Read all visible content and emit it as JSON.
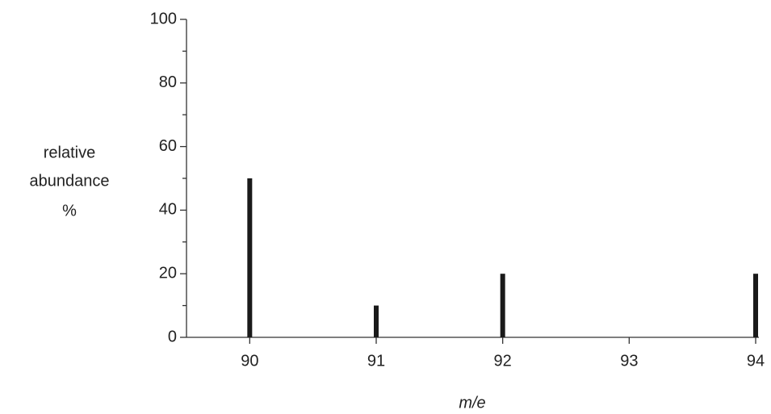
{
  "chart_data": {
    "type": "bar",
    "x": [
      90,
      91,
      92,
      94
    ],
    "values": [
      50,
      10,
      20,
      20
    ],
    "color": "#1a1a1a",
    "xlim": [
      89.5,
      94
    ],
    "xticks": [
      90,
      91,
      92,
      93,
      94
    ],
    "ylim": [
      0,
      100
    ],
    "yticks": [
      0,
      20,
      40,
      60,
      80,
      100
    ],
    "y_minor_ticks": [
      10,
      30,
      50,
      70,
      90
    ],
    "x_label": "m/e",
    "y_label": [
      "relative",
      "abundance",
      "%"
    ],
    "grid": false
  }
}
